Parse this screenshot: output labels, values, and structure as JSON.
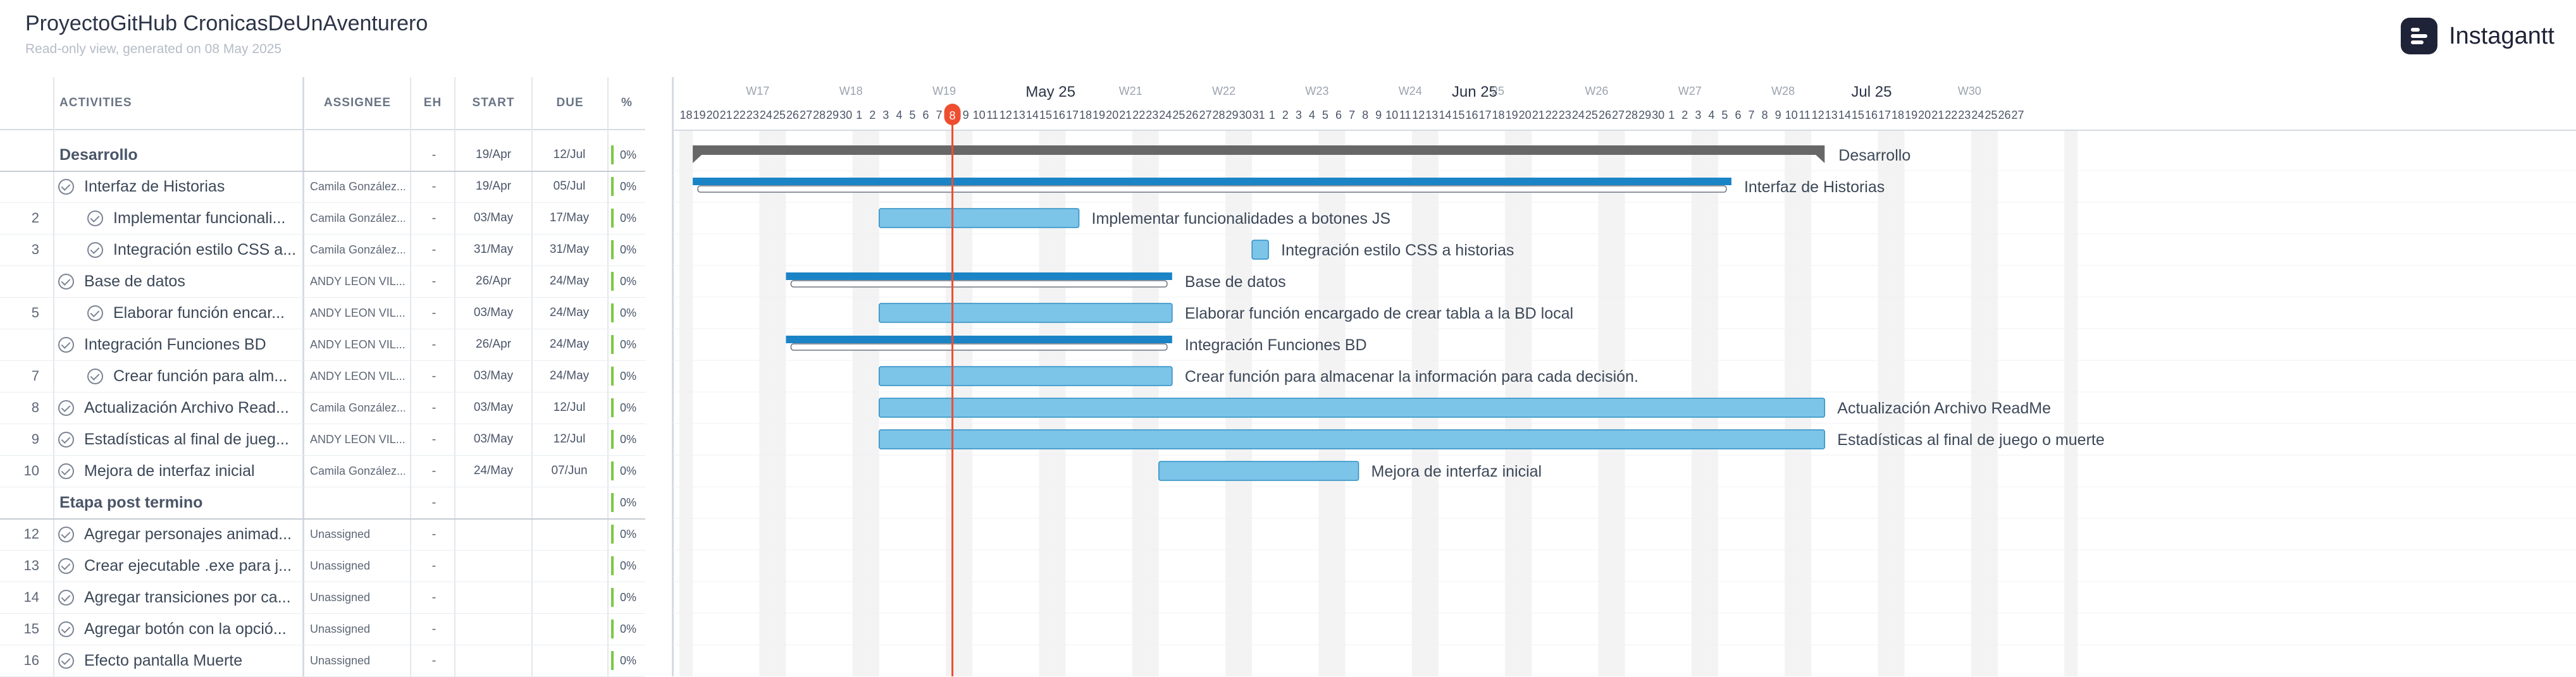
{
  "project": {
    "title": "ProyectoGitHub CronicasDeUnAventurero",
    "subtitle": "Read-only view, generated on 08 May 2025"
  },
  "brand": {
    "name": "Instagantt",
    "icon": "instagantt-logo-icon"
  },
  "columns": {
    "activities": "ACTIVITIES",
    "assignee": "ASSIGNEE",
    "eh": "EH",
    "start": "START",
    "due": "DUE",
    "pct": "%"
  },
  "rows": [
    {
      "num": "",
      "name": "Desarrollo",
      "assignee": "",
      "eh": "-",
      "start": "19/Apr",
      "due": "12/Jul",
      "pct": "0%",
      "type": "group"
    },
    {
      "num": "",
      "name": "Interfaz de Historias",
      "assignee": "Camila González...",
      "eh": "-",
      "start": "19/Apr",
      "due": "05/Jul",
      "pct": "0%",
      "type": "parent"
    },
    {
      "num": "2",
      "name": "Implementar funcionali...",
      "assignee": "Camila González...",
      "eh": "-",
      "start": "03/May",
      "due": "17/May",
      "pct": "0%",
      "type": "child"
    },
    {
      "num": "3",
      "name": "Integración estilo CSS a...",
      "assignee": "Camila González...",
      "eh": "-",
      "start": "31/May",
      "due": "31/May",
      "pct": "0%",
      "type": "child"
    },
    {
      "num": "",
      "name": "Base de datos",
      "assignee": "ANDY LEON VIL...",
      "eh": "-",
      "start": "26/Apr",
      "due": "24/May",
      "pct": "0%",
      "type": "parent"
    },
    {
      "num": "5",
      "name": "Elaborar función encar...",
      "assignee": "ANDY LEON VIL...",
      "eh": "-",
      "start": "03/May",
      "due": "24/May",
      "pct": "0%",
      "type": "child"
    },
    {
      "num": "",
      "name": "Integración Funciones BD",
      "assignee": "ANDY LEON VIL...",
      "eh": "-",
      "start": "26/Apr",
      "due": "24/May",
      "pct": "0%",
      "type": "parent"
    },
    {
      "num": "7",
      "name": "Crear función para alm...",
      "assignee": "ANDY LEON VIL...",
      "eh": "-",
      "start": "03/May",
      "due": "24/May",
      "pct": "0%",
      "type": "child"
    },
    {
      "num": "8",
      "name": "Actualización Archivo Read...",
      "assignee": "Camila González...",
      "eh": "-",
      "start": "03/May",
      "due": "12/Jul",
      "pct": "0%",
      "type": "task"
    },
    {
      "num": "9",
      "name": "Estadísticas al final de jueg...",
      "assignee": "ANDY LEON VIL...",
      "eh": "-",
      "start": "03/May",
      "due": "12/Jul",
      "pct": "0%",
      "type": "task"
    },
    {
      "num": "10",
      "name": "Mejora de interfaz inicial",
      "assignee": "Camila González...",
      "eh": "-",
      "start": "24/May",
      "due": "07/Jun",
      "pct": "0%",
      "type": "task"
    },
    {
      "num": "",
      "name": "Etapa post termino",
      "assignee": "",
      "eh": "-",
      "start": "",
      "due": "",
      "pct": "0%",
      "type": "group"
    },
    {
      "num": "12",
      "name": "Agregar personajes animad...",
      "assignee": "Unassigned",
      "eh": "-",
      "start": "",
      "due": "",
      "pct": "0%",
      "type": "task"
    },
    {
      "num": "13",
      "name": "Crear ejecutable .exe para j...",
      "assignee": "Unassigned",
      "eh": "-",
      "start": "",
      "due": "",
      "pct": "0%",
      "type": "task"
    },
    {
      "num": "14",
      "name": "Agregar transiciones por ca...",
      "assignee": "Unassigned",
      "eh": "-",
      "start": "",
      "due": "",
      "pct": "0%",
      "type": "task"
    },
    {
      "num": "15",
      "name": "Agregar botón con la opció...",
      "assignee": "Unassigned",
      "eh": "-",
      "start": "",
      "due": "",
      "pct": "0%",
      "type": "task"
    },
    {
      "num": "16",
      "name": "Efecto pantalla Muerte",
      "assignee": "Unassigned",
      "eh": "-",
      "start": "",
      "due": "",
      "pct": "0%",
      "type": "task"
    }
  ],
  "timeline": {
    "day_labels": [
      "18",
      "19",
      "20",
      "21",
      "22",
      "23",
      "24",
      "25",
      "26",
      "27",
      "28",
      "29",
      "30",
      "1",
      "2",
      "3",
      "4",
      "5",
      "6",
      "7",
      "8",
      "9",
      "10",
      "11",
      "12",
      "13",
      "14",
      "15",
      "16",
      "17",
      "18",
      "19",
      "20",
      "21",
      "22",
      "23",
      "24",
      "25",
      "26",
      "27",
      "28",
      "29",
      "30",
      "31",
      "1",
      "2",
      "3",
      "4",
      "5",
      "6",
      "7",
      "8",
      "9",
      "10",
      "11",
      "12",
      "13",
      "14",
      "15",
      "16",
      "17",
      "18",
      "19",
      "20",
      "21",
      "22",
      "23",
      "24",
      "25",
      "26",
      "27",
      "28",
      "29",
      "30",
      "1",
      "2",
      "3",
      "4",
      "5",
      "6",
      "7",
      "8",
      "9",
      "10",
      "11",
      "12",
      "13",
      "14",
      "15",
      "16",
      "17",
      "18",
      "19",
      "20",
      "21",
      "22",
      "23",
      "24",
      "25",
      "26",
      "27"
    ],
    "top_labels": [
      {
        "label": "W17",
        "day_index": 5,
        "strong": false
      },
      {
        "label": "W18",
        "day_index": 12,
        "strong": false
      },
      {
        "label": "W19",
        "day_index": 19,
        "strong": false
      },
      {
        "label": "May 25",
        "day_index": 26,
        "strong": true
      },
      {
        "label": "W21",
        "day_index": 33,
        "strong": false
      },
      {
        "label": "W22",
        "day_index": 40,
        "strong": false
      },
      {
        "label": "W23",
        "day_index": 47,
        "strong": false
      },
      {
        "label": "W24",
        "day_index": 54,
        "strong": false
      },
      {
        "label": "Jun 25",
        "day_index": 58,
        "strong": true
      },
      {
        "label": "25",
        "day_index": 61,
        "strong": false
      },
      {
        "label": "W26",
        "day_index": 68,
        "strong": false
      },
      {
        "label": "W27",
        "day_index": 75,
        "strong": false
      },
      {
        "label": "W28",
        "day_index": 82,
        "strong": false
      },
      {
        "label": "Jul 25",
        "day_index": 88,
        "strong": true
      },
      {
        "label": "W30",
        "day_index": 96,
        "strong": false
      }
    ],
    "weekend_start_indices": [
      0,
      7,
      14,
      21,
      28,
      35,
      42,
      49,
      56,
      63,
      70,
      77,
      84,
      91,
      98
    ],
    "today_index": 20,
    "today_label": "8",
    "colors": {
      "task": "#7cc4e8",
      "task_border": "#2f8fc4",
      "parent": "#1b84c6",
      "group": "#676767",
      "today": "#ee4e2f",
      "weekend": "#f3f3f3"
    },
    "bars": [
      {
        "row": 0,
        "kind": "group",
        "start": 1,
        "end": 86,
        "label": "Desarrollo"
      },
      {
        "row": 1,
        "kind": "parent",
        "start": 1,
        "end": 79,
        "label": "Interfaz de Historias"
      },
      {
        "row": 2,
        "kind": "task",
        "start": 15,
        "end": 30,
        "label": "Implementar funcionalidades a botones JS"
      },
      {
        "row": 3,
        "kind": "task",
        "start": 43,
        "end": 44,
        "label": "Integración estilo CSS a historias"
      },
      {
        "row": 4,
        "kind": "parent",
        "start": 8,
        "end": 37,
        "label": "Base de datos"
      },
      {
        "row": 5,
        "kind": "task",
        "start": 15,
        "end": 37,
        "label": "Elaborar función encargado de crear tabla a la BD local"
      },
      {
        "row": 6,
        "kind": "parent",
        "start": 8,
        "end": 37,
        "label": "Integración Funciones BD"
      },
      {
        "row": 7,
        "kind": "task",
        "start": 15,
        "end": 37,
        "label": "Crear función para almacenar la información para cada decisión."
      },
      {
        "row": 8,
        "kind": "task",
        "start": 15,
        "end": 86,
        "label": "Actualización Archivo ReadMe"
      },
      {
        "row": 9,
        "kind": "task",
        "start": 15,
        "end": 86,
        "label": "Estadísticas al final de juego o muerte"
      },
      {
        "row": 10,
        "kind": "task",
        "start": 36,
        "end": 51,
        "label": "Mejora de interfaz inicial"
      }
    ]
  }
}
